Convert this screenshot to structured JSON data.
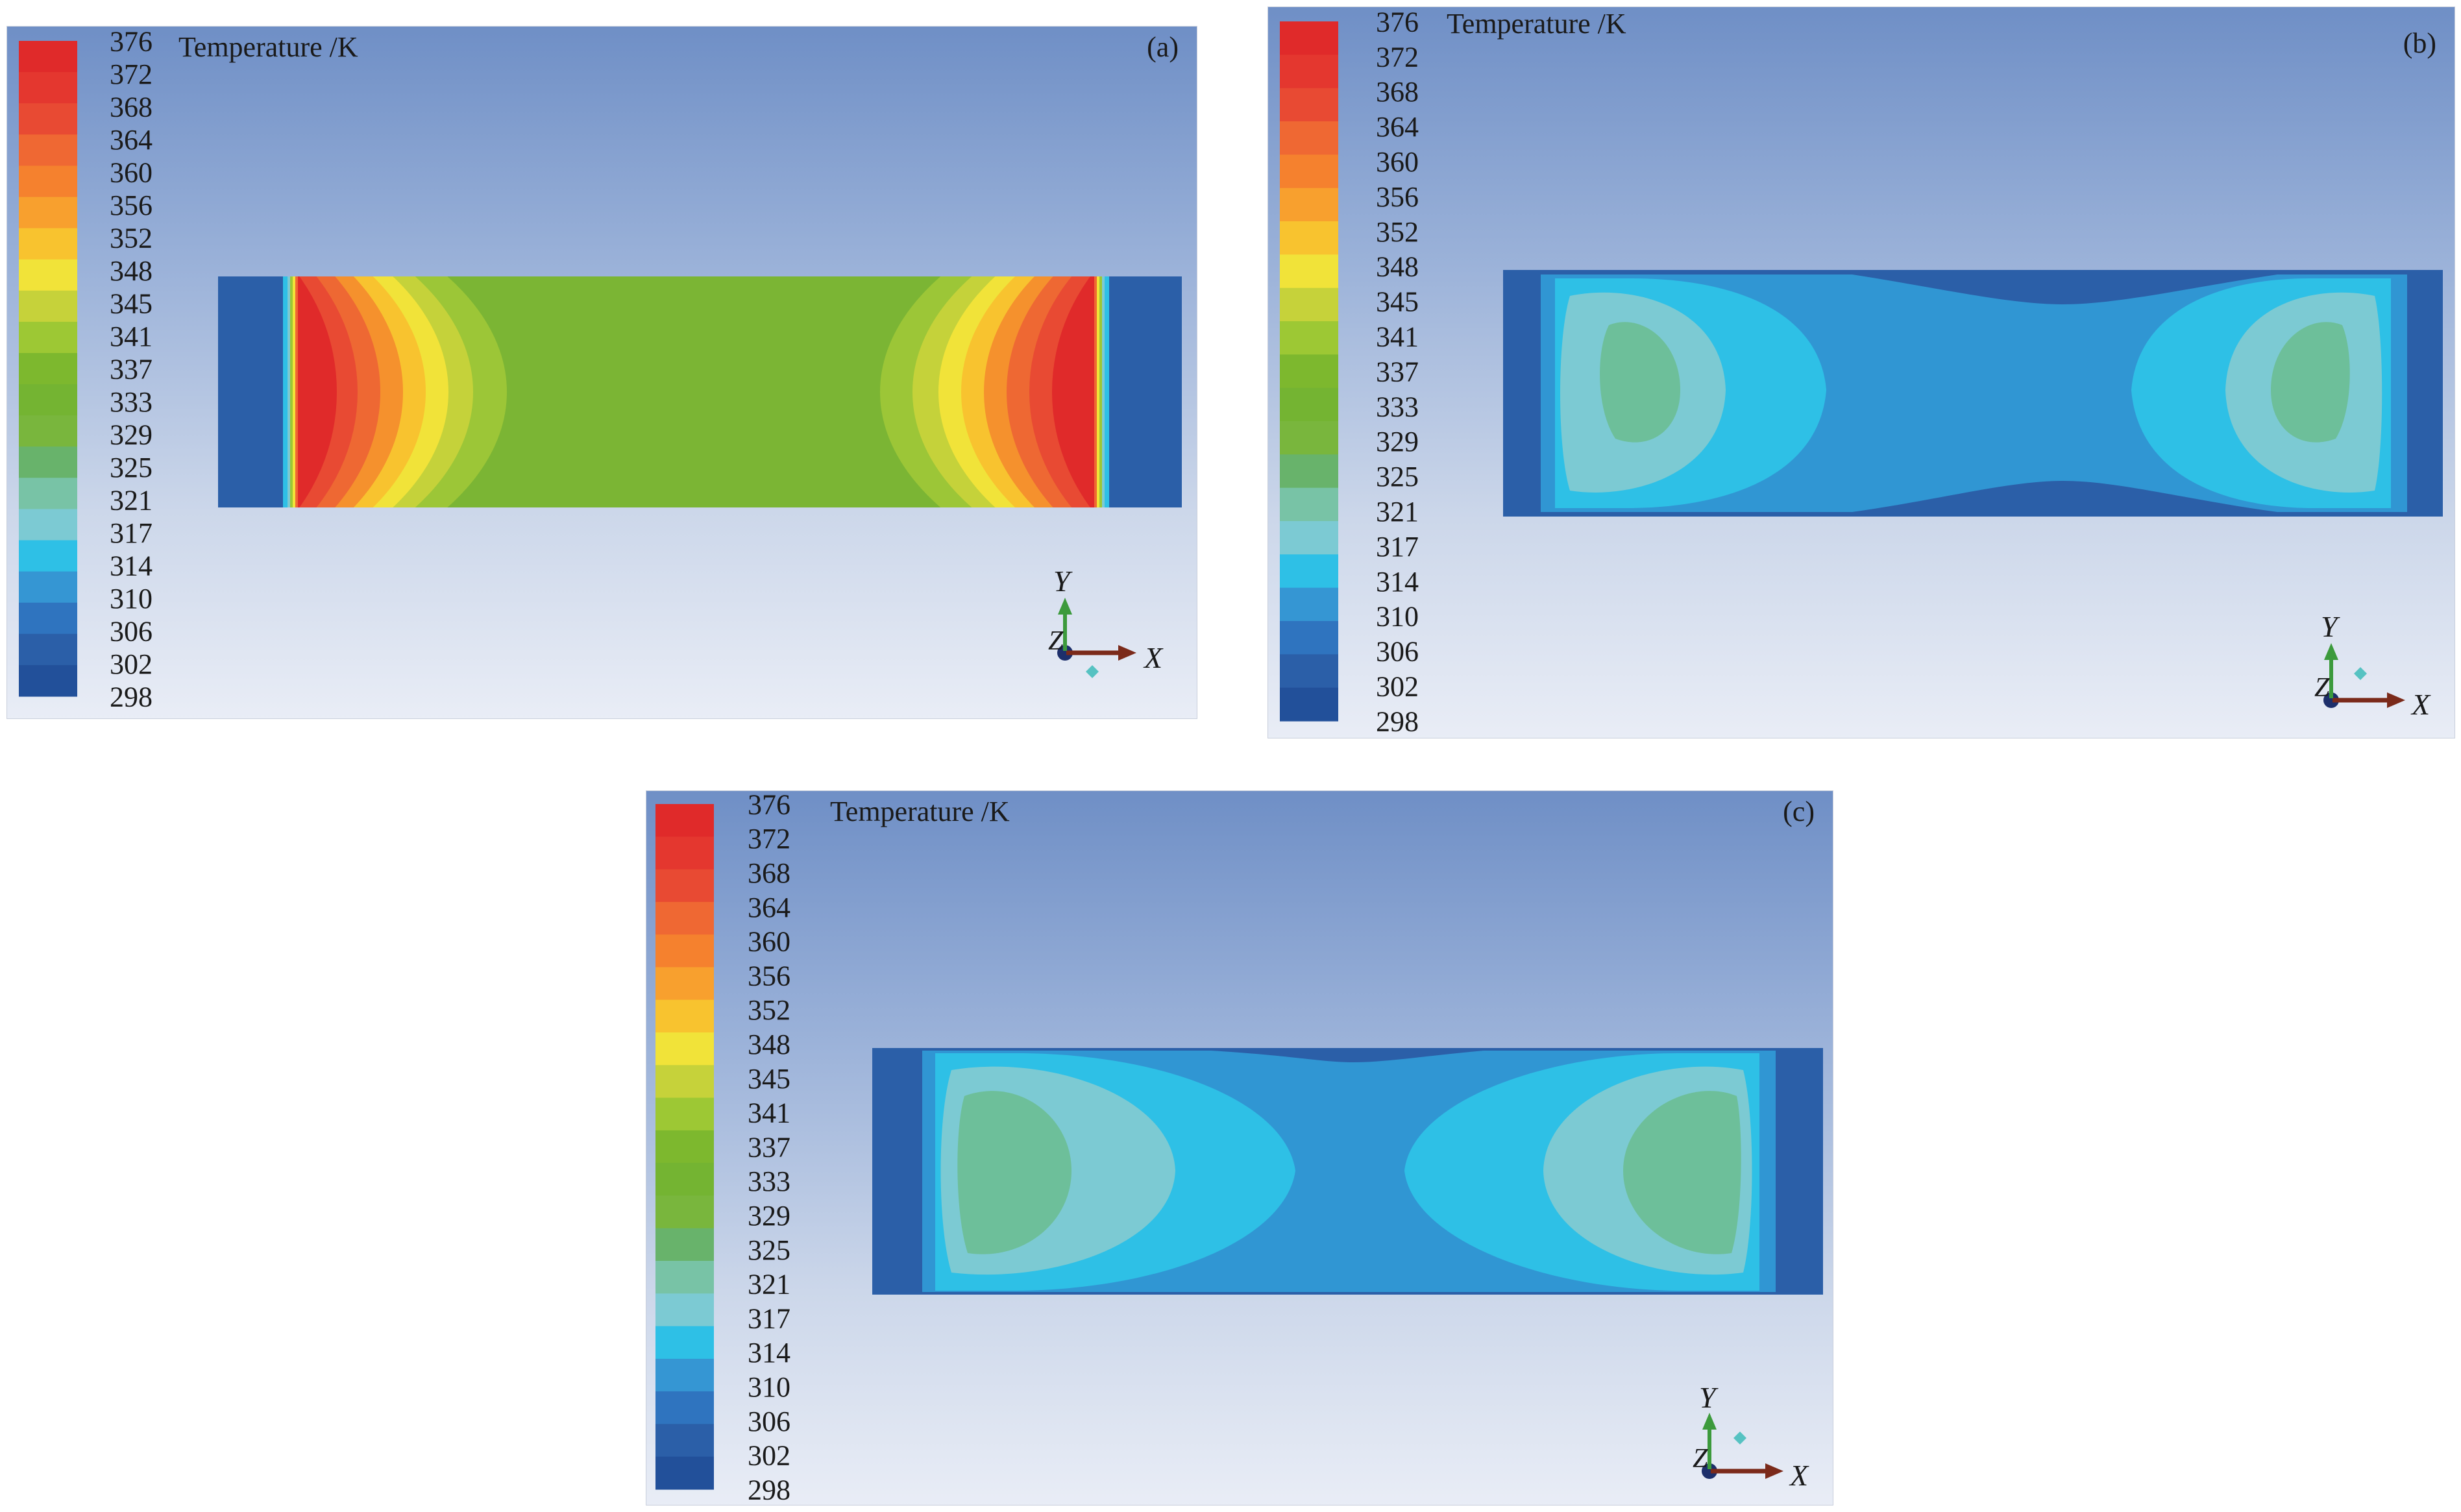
{
  "colorbar": {
    "title": "Temperature /K",
    "ticks": [
      "376",
      "372",
      "368",
      "364",
      "360",
      "356",
      "352",
      "348",
      "345",
      "341",
      "337",
      "333",
      "329",
      "325",
      "321",
      "317",
      "314",
      "310",
      "306",
      "302",
      "298"
    ],
    "colors": [
      "#e02a2a",
      "#e4372f",
      "#e84a33",
      "#ef6833",
      "#f5812e",
      "#f8a02e",
      "#f8c32f",
      "#f1e339",
      "#c6d23a",
      "#9dc834",
      "#7db82e",
      "#74b432",
      "#79b63d",
      "#68b36b",
      "#78c3a6",
      "#7ccad3",
      "#2ec0e6",
      "#3596d3",
      "#2f74bf",
      "#2b5fa8",
      "#22509a"
    ]
  },
  "axes": {
    "x_label": "X",
    "y_label": "Y",
    "z_label": "Z"
  },
  "panels": [
    {
      "id": "a",
      "label": "(a)"
    },
    {
      "id": "b",
      "label": "(b)"
    },
    {
      "id": "c",
      "label": "(c)"
    }
  ]
}
